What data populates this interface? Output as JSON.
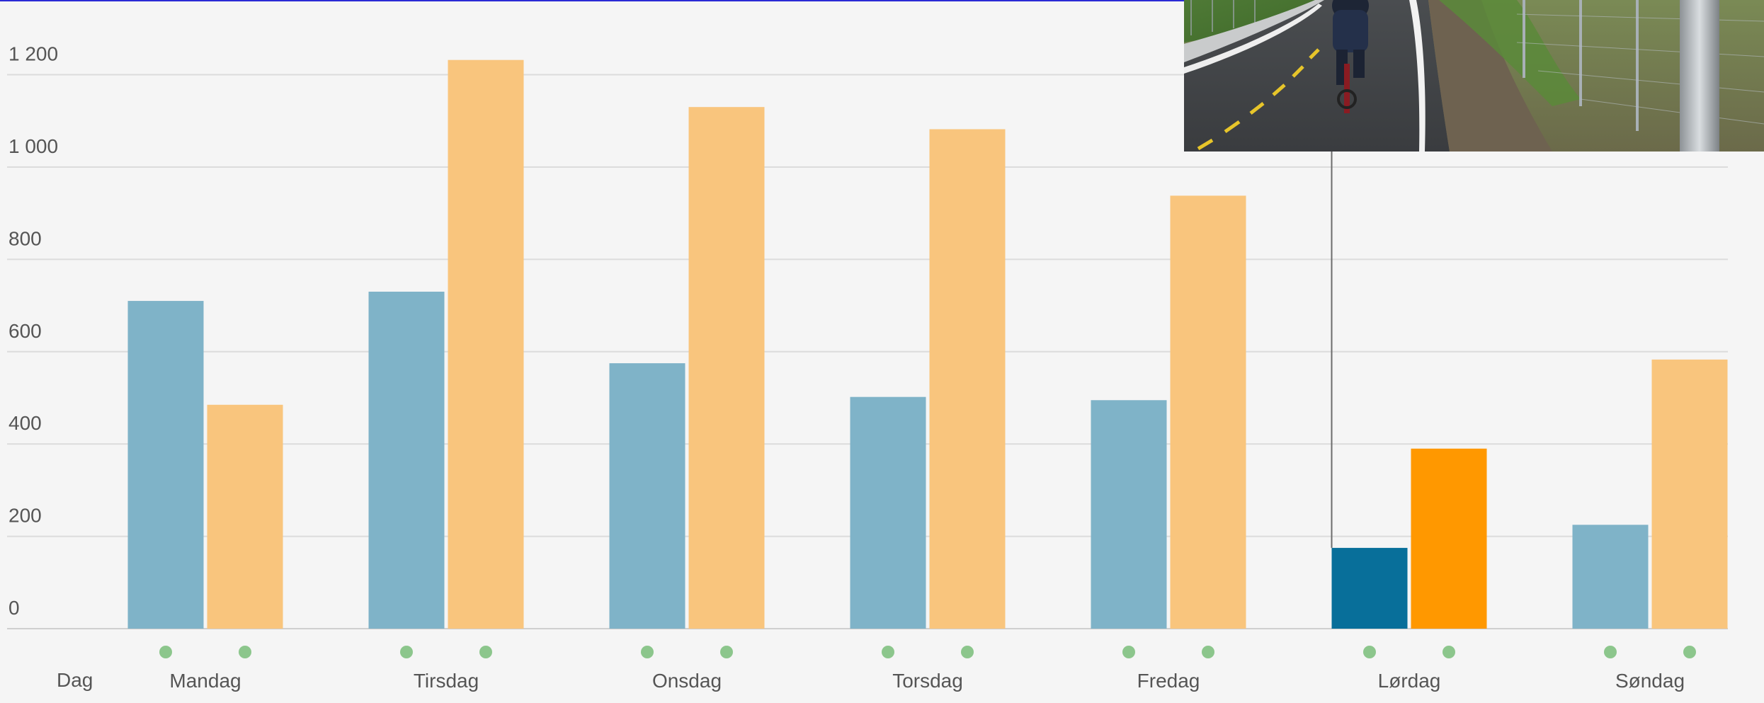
{
  "chart_data": {
    "type": "bar",
    "xlabel": "Dag",
    "ylabel": "",
    "title": "",
    "categories": [
      "Mandag",
      "Tirsdag",
      "Onsdag",
      "Torsdag",
      "Fredag",
      "Lørdag",
      "Søndag"
    ],
    "series": [
      {
        "values": [
          710,
          730,
          575,
          502,
          495,
          175,
          225
        ],
        "color": "#7fb3c8",
        "highlight_color": "#086f9a"
      },
      {
        "values": [
          485,
          1232,
          1130,
          1082,
          938,
          390,
          583
        ],
        "color": "#f9c57d",
        "highlight_color": "#ff9800"
      }
    ],
    "highlighted_category": "Lørdag",
    "ylim": [
      0,
      1230
    ],
    "yticks": [
      0,
      200,
      400,
      600,
      800,
      1000,
      1200
    ],
    "ytick_labels": [
      "0",
      "200",
      "400",
      "600",
      "800",
      "1 000",
      "1 200"
    ],
    "grid": true,
    "marker_color": "#8cc68c"
  },
  "photo": {
    "icon": "cyclist-on-bike-path-photo"
  }
}
